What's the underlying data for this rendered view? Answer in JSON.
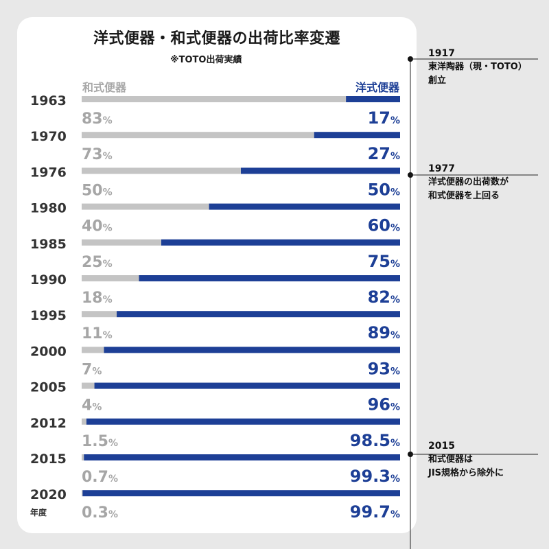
{
  "title": "洋式便器・和式便器の出荷比率変遷",
  "subtitle": "※TOTO出荷実績",
  "legend": {
    "left": "和式便器",
    "right": "洋式便器"
  },
  "unit_label": "年度",
  "colors": {
    "western": "#1d3f96",
    "japanese": "#c4c4c4",
    "year": "#333333",
    "pct_gray": "#a6a6a6"
  },
  "annotations": [
    {
      "year": "1917",
      "lines": [
        "東洋陶器（現・TOTO）",
        "創立"
      ]
    },
    {
      "year": "1977",
      "lines": [
        "洋式便器の出荷数が",
        "和式便器を上回る"
      ]
    },
    {
      "year": "2015",
      "lines": [
        "和式便器は",
        "JIS規格から除外に"
      ]
    }
  ],
  "chart_data": {
    "type": "bar",
    "title": "洋式便器・和式便器の出荷比率変遷",
    "subtitle": "※TOTO出荷実績",
    "xlabel": "",
    "ylabel": "年度",
    "categories": [
      "1963",
      "1970",
      "1976",
      "1980",
      "1985",
      "1990",
      "1995",
      "2000",
      "2005",
      "2012",
      "2015",
      "2020"
    ],
    "series": [
      {
        "name": "和式便器",
        "values": [
          83,
          73,
          50,
          40,
          25,
          18,
          11,
          7,
          4,
          1.5,
          0.7,
          0.3
        ],
        "labels": [
          "83",
          "73",
          "50",
          "40",
          "25",
          "18",
          "11",
          "7",
          "4",
          "1.5",
          "0.7",
          "0.3"
        ]
      },
      {
        "name": "洋式便器",
        "values": [
          17,
          27,
          50,
          60,
          75,
          82,
          89,
          93,
          96,
          98.5,
          99.3,
          99.7
        ],
        "labels": [
          "17",
          "27",
          "50",
          "60",
          "75",
          "82",
          "89",
          "93",
          "96",
          "98.5",
          "99.3",
          "99.7"
        ]
      }
    ],
    "value_suffix": "%",
    "stacked": true,
    "orientation": "horizontal",
    "xlim": [
      0,
      100
    ]
  }
}
